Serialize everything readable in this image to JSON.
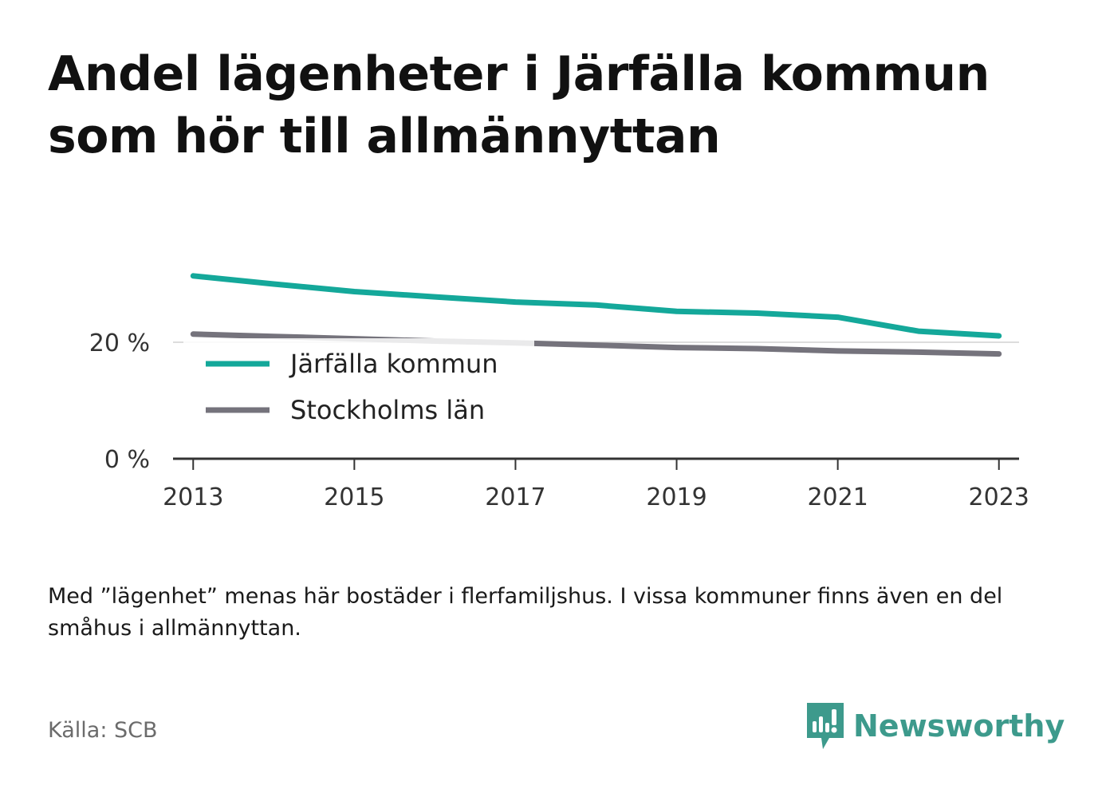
{
  "title": "Andel lägenheter i Järfälla kommun som hör till allmännyttan",
  "note": "Med ”lägenhet” menas här bostäder i flerfamiljshus. I vissa kommuner finns även en del småhus i allmännyttan.",
  "source": "Källa: SCB",
  "brand": {
    "name": "Newsworthy",
    "icon": "newsworthy-logo-icon",
    "color": "#3d9a8c"
  },
  "chart_data": {
    "type": "line",
    "x": [
      2013,
      2014,
      2015,
      2016,
      2017,
      2018,
      2019,
      2020,
      2021,
      2022,
      2023
    ],
    "series": [
      {
        "name": "Järfälla kommun",
        "color": "#14a89a",
        "values": [
          31.4,
          30.0,
          28.7,
          27.8,
          26.9,
          26.4,
          25.3,
          25.0,
          24.3,
          21.9,
          21.1
        ]
      },
      {
        "name": "Stockholms län",
        "color": "#75737c",
        "values": [
          21.4,
          21.0,
          20.6,
          20.2,
          19.9,
          19.5,
          19.1,
          18.9,
          18.5,
          18.3,
          18.0
        ]
      }
    ],
    "xticks": [
      "2013",
      "2015",
      "2017",
      "2019",
      "2021",
      "2023"
    ],
    "yticks": [
      "0 %",
      "20 %"
    ],
    "ytick_values": [
      0,
      20
    ],
    "xlim": [
      2012.75,
      2023.25
    ],
    "ylim": [
      0,
      40
    ],
    "xlabel": "",
    "ylabel": "",
    "grid": true,
    "legend_position": "center-left"
  }
}
